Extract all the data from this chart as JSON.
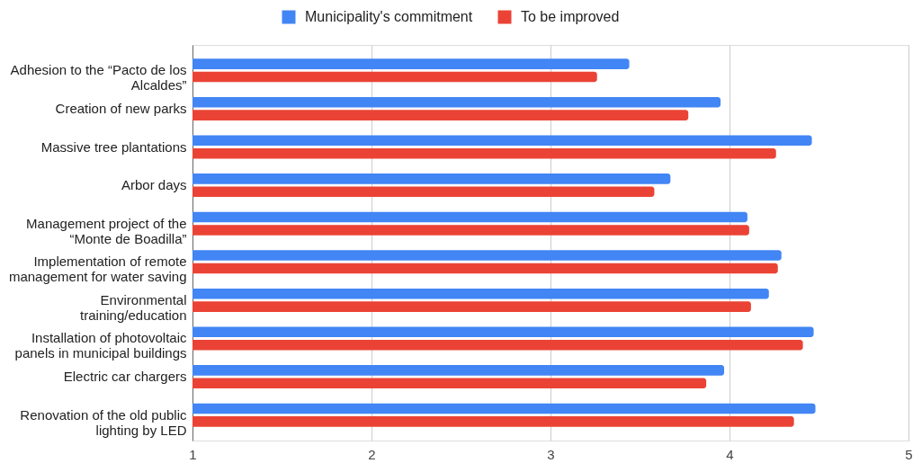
{
  "chart_data": {
    "type": "bar",
    "orientation": "horizontal",
    "categories": [
      "Adhesion to the “Pacto de los Alcaldes”",
      "Creation of new parks",
      "Massive tree plantations",
      "Arbor days",
      "Management project of the “Monte de Boadilla”",
      "Implementation of remote management for water saving",
      "Environmental training/education",
      "Installation of photovoltaic panels in municipal buildings",
      "Electric car chargers",
      "Renovation of the old public lighting by LED"
    ],
    "series": [
      {
        "name": "Municipality's commitment",
        "color": "#4285f4",
        "values": [
          3.44,
          3.95,
          4.46,
          3.67,
          4.1,
          4.29,
          4.22,
          4.47,
          3.97,
          4.48
        ]
      },
      {
        "name": "To be improved",
        "color": "#ea4335",
        "values": [
          3.26,
          3.77,
          4.26,
          3.58,
          4.11,
          4.27,
          4.12,
          4.41,
          3.87,
          4.36
        ]
      }
    ],
    "xlim": [
      1,
      5
    ],
    "xticks": [
      1,
      2,
      3,
      4,
      5
    ],
    "grid": "x",
    "legend": "top"
  }
}
